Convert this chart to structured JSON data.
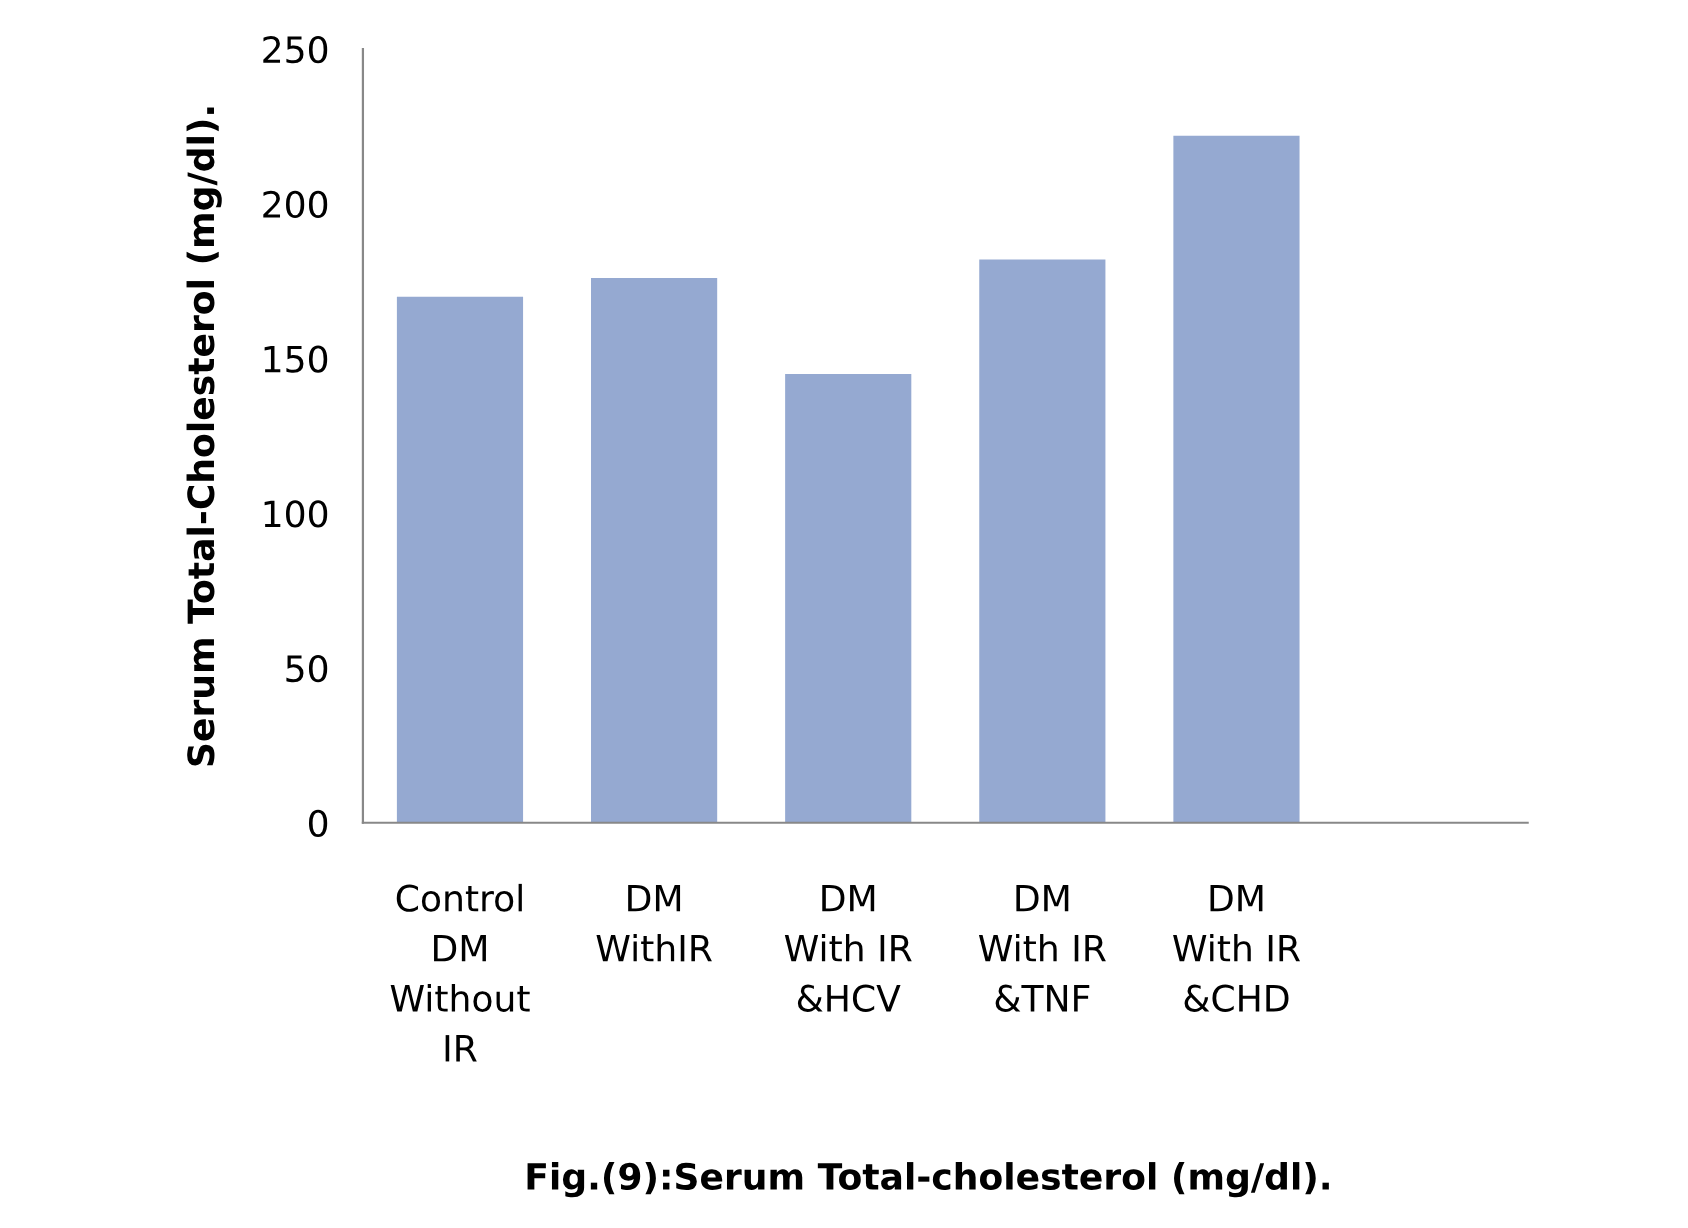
{
  "chart_data": {
    "type": "bar",
    "title": "Fig.(9):Serum Total-cholesterol (mg/dl).",
    "ylabel": "Serum Total-Cholesterol (mg/dl).",
    "categories": [
      "Control\nDM\nWithout\nIR",
      "DM\nWithIR",
      "DM\nWith IR\n&HCV",
      "DM\nWith IR\n&TNF",
      "DM\nWith IR\n&CHD",
      null
    ],
    "values": [
      170,
      176,
      145,
      182,
      222,
      null
    ],
    "color": "#95a9d1",
    "ylim": [
      0,
      250
    ],
    "yticks": [
      0,
      50,
      100,
      150,
      200,
      250
    ],
    "grid": false,
    "legend": false
  }
}
